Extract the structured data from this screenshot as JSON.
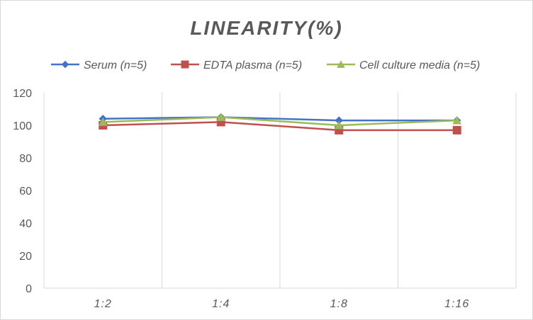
{
  "chart_data": {
    "type": "line",
    "title": "LINEARITY(%)",
    "xlabel": "",
    "ylabel": "",
    "categories": [
      "1:2",
      "1:4",
      "1:8",
      "1:16"
    ],
    "ylim": [
      0,
      120
    ],
    "yticks": [
      0,
      20,
      40,
      60,
      80,
      100,
      120
    ],
    "grid": "vertical",
    "legend_position": "top",
    "series": [
      {
        "name": "Serum (n=5)",
        "values": [
          104,
          105,
          103,
          103
        ],
        "color": "#4472c4",
        "marker": "diamond"
      },
      {
        "name": "EDTA plasma (n=5)",
        "values": [
          100,
          102,
          97,
          97
        ],
        "color": "#c0504d",
        "marker": "square"
      },
      {
        "name": "Cell culture media (n=5)",
        "values": [
          102,
          105,
          100,
          103
        ],
        "color": "#9bbb59",
        "marker": "triangle"
      }
    ]
  }
}
